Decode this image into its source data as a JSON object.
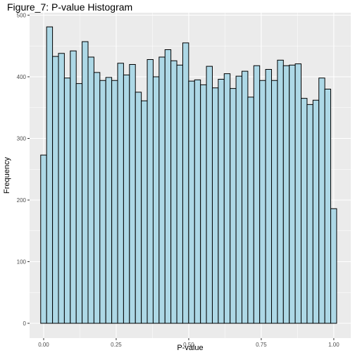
{
  "chart_data": {
    "type": "bar",
    "title": "Figure_7: P-value Histogram",
    "xlabel": "P-value",
    "ylabel": "Frequency",
    "xlim": [
      -0.0485,
      1.0585
    ],
    "ylim": [
      -24,
      504
    ],
    "xticks": [
      0.0,
      0.25,
      0.5,
      0.75,
      1.0
    ],
    "xtick_labels": [
      "0.00",
      "0.25",
      "0.50",
      "0.75",
      "1.00"
    ],
    "yticks": [
      0,
      100,
      200,
      300,
      400,
      500
    ],
    "ytick_labels": [
      "0",
      "100",
      "200",
      "300",
      "400",
      "500"
    ],
    "bin_start": -0.0102,
    "bin_width": 0.0204,
    "values": [
      273,
      481,
      433,
      438,
      398,
      442,
      389,
      457,
      432,
      407,
      394,
      399,
      394,
      422,
      403,
      420,
      375,
      361,
      428,
      400,
      432,
      444,
      426,
      419,
      455,
      393,
      395,
      387,
      417,
      382,
      396,
      405,
      381,
      401,
      409,
      367,
      418,
      394,
      412,
      394,
      427,
      418,
      419,
      421,
      365,
      355,
      362,
      398,
      380,
      186
    ],
    "bar_fill": "#add8e6",
    "bar_stroke": "#000000",
    "panel_background": "#ebebeb",
    "grid_color": "#ffffff",
    "grid": true,
    "legend": "none"
  }
}
